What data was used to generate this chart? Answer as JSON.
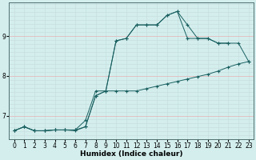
{
  "xlabel": "Humidex (Indice chaleur)",
  "bg_color": "#d4eeee",
  "grid_color_v": "#c8dede",
  "grid_color_h": "#e8b0b0",
  "line_color": "#1a6060",
  "xlim": [
    -0.5,
    23.5
  ],
  "ylim": [
    6.4,
    9.85
  ],
  "yticks": [
    7,
    8,
    9
  ],
  "xticks": [
    0,
    1,
    2,
    3,
    4,
    5,
    6,
    7,
    8,
    9,
    10,
    11,
    12,
    13,
    14,
    15,
    16,
    17,
    18,
    19,
    20,
    21,
    22,
    23
  ],
  "series1_x": [
    0,
    1,
    2,
    3,
    4,
    5,
    6,
    7,
    8,
    9,
    10,
    11,
    12,
    13,
    14,
    15,
    16,
    17,
    18,
    19,
    20,
    21
  ],
  "series1_y": [
    6.62,
    6.72,
    6.62,
    6.62,
    6.64,
    6.64,
    6.64,
    6.72,
    7.5,
    7.62,
    8.88,
    8.94,
    9.28,
    9.28,
    9.28,
    9.52,
    9.62,
    9.28,
    8.94,
    8.94,
    8.82,
    8.82
  ],
  "series2_x": [
    0,
    1,
    2,
    3,
    4,
    5,
    6,
    7,
    8,
    9,
    10,
    11,
    12,
    13,
    14,
    15,
    16,
    17,
    18,
    19,
    20,
    21,
    22,
    23
  ],
  "series2_y": [
    6.62,
    6.72,
    6.62,
    6.62,
    6.64,
    6.64,
    6.64,
    6.88,
    7.62,
    7.62,
    7.62,
    7.62,
    7.62,
    7.68,
    7.74,
    7.8,
    7.86,
    7.92,
    7.98,
    8.04,
    8.12,
    8.22,
    8.3,
    8.36
  ],
  "series3_x": [
    0,
    1,
    2,
    3,
    4,
    5,
    6,
    7,
    8,
    9,
    10,
    11,
    12,
    13,
    14,
    15,
    16,
    17,
    18,
    19,
    20,
    21,
    22,
    23
  ],
  "series3_y": [
    6.62,
    6.72,
    6.62,
    6.62,
    6.64,
    6.64,
    6.62,
    6.72,
    7.5,
    7.62,
    8.88,
    8.94,
    9.28,
    9.28,
    9.28,
    9.52,
    9.62,
    8.94,
    8.94,
    8.94,
    8.82,
    8.82,
    8.82,
    8.36
  ],
  "fontsize_label": 6.5,
  "fontsize_tick": 5.5
}
